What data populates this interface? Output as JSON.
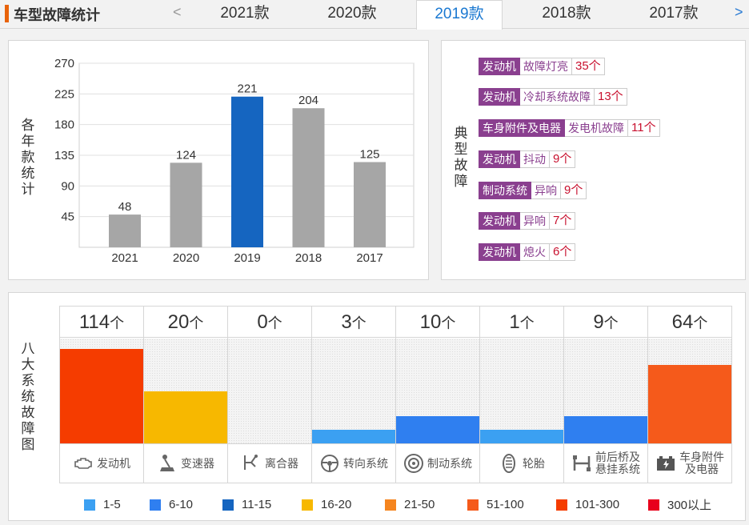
{
  "header": {
    "title": "车型故障统计",
    "prev_icon": "chevron-left-icon",
    "next_icon": "chevron-right-icon",
    "prev_label": "<",
    "next_label": ">",
    "tabs": [
      {
        "label": "2021款",
        "active": false
      },
      {
        "label": "2020款",
        "active": false
      },
      {
        "label": "2019款",
        "active": true
      },
      {
        "label": "2018款",
        "active": false
      },
      {
        "label": "2017款",
        "active": false
      }
    ]
  },
  "yearly_chart": {
    "ylabel": "各年款统计",
    "ylabel_chars": [
      "各",
      "年",
      "款",
      "统",
      "计"
    ],
    "y_ticks": [
      "270",
      "225",
      "180",
      "135",
      "90",
      "45"
    ],
    "colors": {
      "default": "#a6a6a6",
      "highlight": "#1565c0"
    },
    "chart_data": {
      "type": "bar",
      "categories": [
        "2021",
        "2020",
        "2019",
        "2018",
        "2017"
      ],
      "values": [
        48,
        124,
        221,
        204,
        125
      ],
      "highlight": "2019",
      "ylim": [
        0,
        270
      ],
      "grid": true
    }
  },
  "typical_faults": {
    "label_chars": [
      "典",
      "型",
      "故",
      "障"
    ],
    "items": [
      {
        "category": "发动机",
        "name": "故障灯亮",
        "count": "35个"
      },
      {
        "category": "发动机",
        "name": "冷却系统故障",
        "count": "13个"
      },
      {
        "category": "车身附件及电器",
        "name": "发电机故障",
        "count": "11个"
      },
      {
        "category": "发动机",
        "name": "抖动",
        "count": "9个"
      },
      {
        "category": "制动系统",
        "name": "异响",
        "count": "9个"
      },
      {
        "category": "发动机",
        "name": "异响",
        "count": "7个"
      },
      {
        "category": "发动机",
        "name": "熄火",
        "count": "6个"
      }
    ]
  },
  "systems_chart": {
    "label_chars": [
      "八",
      "大",
      "系",
      "统",
      "故",
      "障",
      "图"
    ],
    "unit": "个",
    "systems": [
      {
        "count": "114",
        "value": 114,
        "label": "发动机",
        "icon": "engine-icon",
        "color": "#f53c00",
        "level": 0.9
      },
      {
        "count": "20",
        "value": 20,
        "label": "变速器",
        "icon": "gear-shift-icon",
        "color": "#f7b800",
        "level": 0.5
      },
      {
        "count": "0",
        "value": 0,
        "label": "离合器",
        "icon": "clutch-icon",
        "color": "",
        "level": 0
      },
      {
        "count": "3",
        "value": 3,
        "label": "转向系统",
        "icon": "steering-wheel-icon",
        "color": "#3ba0f2",
        "level": 0.13
      },
      {
        "count": "10",
        "value": 10,
        "label": "制动系统",
        "icon": "brake-disc-icon",
        "color": "#2f7ff0",
        "level": 0.26
      },
      {
        "count": "1",
        "value": 1,
        "label": "轮胎",
        "icon": "tire-icon",
        "color": "#3ba0f2",
        "level": 0.13
      },
      {
        "count": "9",
        "value": 9,
        "label": "前后桥及悬挂系统",
        "label_lines": [
          "前后桥及",
          "悬挂系统"
        ],
        "icon": "suspension-icon",
        "color": "#2f7ff0",
        "level": 0.26
      },
      {
        "count": "64",
        "value": 64,
        "label": "车身附件及电器",
        "label_lines": [
          "车身附件",
          "及电器"
        ],
        "icon": "battery-icon",
        "color": "#f55a1b",
        "level": 0.75
      }
    ],
    "legend": [
      {
        "label": "1-5",
        "color": "#3ba0f2"
      },
      {
        "label": "6-10",
        "color": "#2f7ff0"
      },
      {
        "label": "11-15",
        "color": "#1565c0"
      },
      {
        "label": "16-20",
        "color": "#f7b800"
      },
      {
        "label": "21-50",
        "color": "#f5851f"
      },
      {
        "label": "51-100",
        "color": "#f55a1b"
      },
      {
        "label": "101-300",
        "color": "#f53c00"
      },
      {
        "label": "300以上",
        "color": "#e8001c"
      }
    ]
  }
}
